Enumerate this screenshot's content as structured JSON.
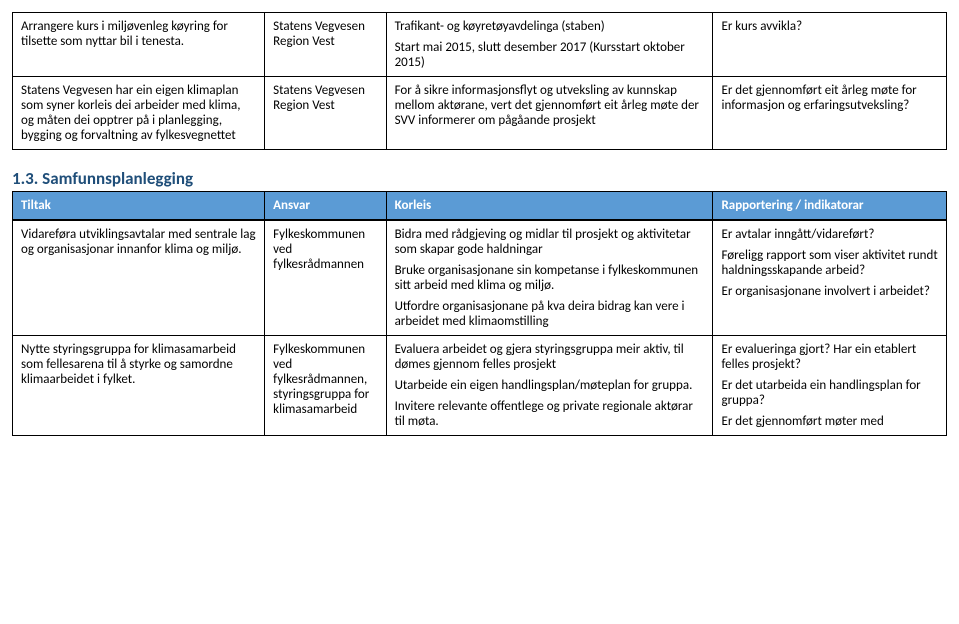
{
  "colors": {
    "header_bg": "#5b9bd5",
    "header_text": "#ffffff",
    "border": "#000000",
    "heading": "#1f4e79",
    "body_text": "#000000",
    "body_bg": "#ffffff"
  },
  "layout": {
    "widths_pct": [
      27,
      13,
      35,
      25
    ],
    "font_family": "Calibri",
    "body_font_pt": 10,
    "heading_font_pt": 13
  },
  "upper_table": {
    "rows": [
      {
        "c1": "Arrangere kurs i miljøvenleg køyring for tilsette som nyttar bil i tenesta.",
        "c2": "Statens Vegvesen Region Vest",
        "c3_lines": [
          "Trafikant- og køyretøyavdelinga (staben)",
          "Start mai 2015, slutt desember 2017 (Kursstart oktober 2015)"
        ],
        "c4": "Er kurs avvikla?"
      },
      {
        "c1": "Statens Vegvesen har ein eigen klimaplan som syner korleis dei arbeider med klima, og måten dei opptrer på i planlegging, bygging og forvaltning av fylkesvegnettet",
        "c2": "Statens Vegvesen Region Vest",
        "c3_lines": [
          "For å sikre informasjonsflyt og utveksling av kunnskap mellom aktørane, vert det gjennomført eit årleg møte der SVV informerer om pågåande prosjekt"
        ],
        "c4": "Er det gjennomført eit årleg møte for informasjon og erfaringsutveksling?"
      }
    ]
  },
  "section_heading": "1.3. Samfunnsplanlegging",
  "lower_table": {
    "headers": [
      "Tiltak",
      "Ansvar",
      "Korleis",
      "Rapportering / indikatorar"
    ],
    "rows": [
      {
        "c1": "Vidareføra utviklingsavtalar med sentrale lag og organisasjonar innanfor klima og miljø.",
        "c2": "Fylkeskommunen ved fylkesrådmannen",
        "c3_lines": [
          "Bidra med rådgjeving og midlar til prosjekt og aktivitetar som skapar gode haldningar",
          "Bruke organisasjonane sin kompetanse i fylkeskommunen sitt arbeid med klima og miljø.",
          "Utfordre organisasjonane på kva deira bidrag kan vere i arbeidet med klimaomstilling"
        ],
        "c4_lines": [
          "Er avtalar inngått/vidareført?",
          "Føreligg rapport  som viser aktivitet rundt haldningsskapande arbeid?",
          "Er organisasjonane involvert i arbeidet?"
        ]
      },
      {
        "c1": "Nytte styringsgruppa for klimasamarbeid som fellesarena til å styrke og samordne klimaarbeidet i fylket.",
        "c2": "Fylkeskommunen ved fylkesrådmannen, styringsgruppa for klimasamarbeid",
        "c3_lines": [
          "Evaluera arbeidet og gjera styringsgruppa meir aktiv, til dømes gjennom felles prosjekt",
          "Utarbeide ein eigen handlingsplan/møteplan for gruppa.",
          "Invitere relevante offentlege og private regionale aktørar til møta."
        ],
        "c4_lines": [
          "Er evalueringa gjort? Har ein etablert felles prosjekt?",
          "Er det utarbeida ein handlingsplan for gruppa?",
          "Er det gjennomført møter med"
        ]
      }
    ]
  }
}
